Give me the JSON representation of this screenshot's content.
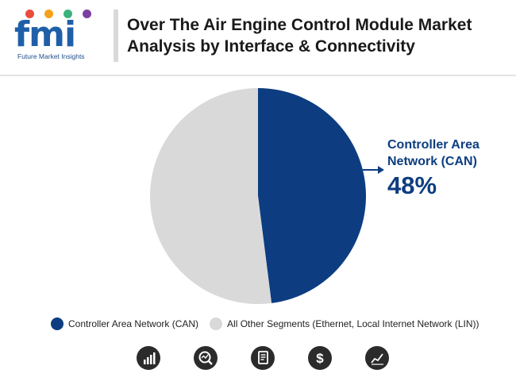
{
  "header": {
    "logo_text": "fmi",
    "logo_subtitle": "Future Market Insights",
    "title": "Over The Air Engine Control Module Market Analysis by Interface & Connectivity"
  },
  "chart_data": {
    "type": "pie",
    "title": "Over The Air Engine Control Module Market Analysis by Interface & Connectivity",
    "slices": [
      {
        "label": "Controller Area Network (CAN)",
        "value": 48,
        "color": "#0d3d80"
      },
      {
        "label": "All Other Segments (Ethernet, Local Internet Network (LIN))",
        "value": 52,
        "color": "#d9d9d9"
      }
    ],
    "annotation": {
      "label": "Controller Area Network (CAN)",
      "value_text": "48%"
    },
    "legend_position": "bottom"
  },
  "footer_icons": [
    "bar-chart-icon",
    "magnifier-chart-icon",
    "document-icon",
    "dollar-icon",
    "trend-line-icon"
  ]
}
